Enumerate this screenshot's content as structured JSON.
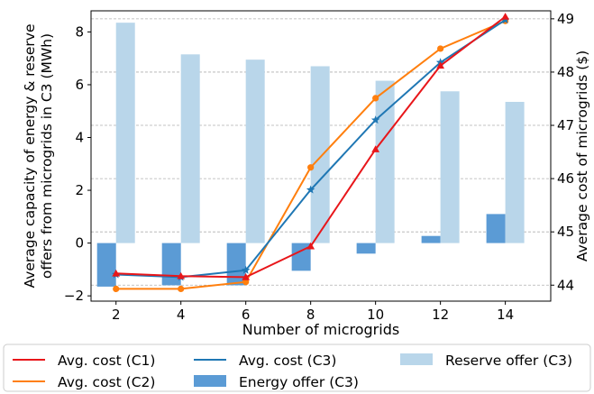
{
  "chart_data": {
    "type": "bar",
    "x": [
      2,
      4,
      6,
      8,
      10,
      12,
      14
    ],
    "xlabel": "Number of microgrids",
    "ylabel_left": "Average capacity of energy & reserve\noffers from microgrids in C3 (MWh)",
    "ylabel_right": "Average cost of microgrids ($)",
    "xticks": [
      "2",
      "4",
      "6",
      "8",
      "10",
      "12",
      "14"
    ],
    "yticks_left": [
      "−2",
      "0",
      "2",
      "4",
      "6",
      "8"
    ],
    "yticks_right": [
      "44",
      "45",
      "46",
      "47",
      "48",
      "49"
    ],
    "ylim_left": [
      -2.2,
      8.8
    ],
    "ylim_right": [
      43.7,
      49.15
    ],
    "grid": "horizontal dashed (right axis)",
    "legend_position": "bottom",
    "bar_series": [
      {
        "name": "Energy offer (C3)",
        "axis": "left",
        "color": "#5b9bd5",
        "values": [
          -1.65,
          -1.6,
          -1.6,
          -1.05,
          -0.4,
          0.27,
          1.1
        ]
      },
      {
        "name": "Reserve offer (C3)",
        "axis": "left",
        "color": "#b9d6ea",
        "values": [
          8.35,
          7.15,
          6.95,
          6.7,
          6.15,
          5.75,
          5.35
        ]
      }
    ],
    "line_series": [
      {
        "name": "Avg. cost (C1)",
        "axis": "right",
        "color": "#e8161a",
        "marker": "triangle",
        "values": [
          44.22,
          44.17,
          44.15,
          44.73,
          46.55,
          48.12,
          49.04
        ]
      },
      {
        "name": "Avg. cost (C2)",
        "axis": "right",
        "color": "#ff7f0e",
        "marker": "circle",
        "values": [
          43.93,
          43.93,
          44.06,
          46.21,
          47.51,
          48.44,
          48.96
        ]
      },
      {
        "name": "Avg. cost (C3)",
        "axis": "right",
        "color": "#1f77b4",
        "marker": "star",
        "values": [
          44.2,
          44.15,
          44.28,
          45.79,
          47.1,
          48.18,
          48.98
        ]
      }
    ],
    "legend_order": [
      "Avg. cost (C1)",
      "Avg. cost (C3)",
      "Reserve offer (C3)",
      "Avg. cost (C2)",
      "Energy offer (C3)"
    ]
  }
}
